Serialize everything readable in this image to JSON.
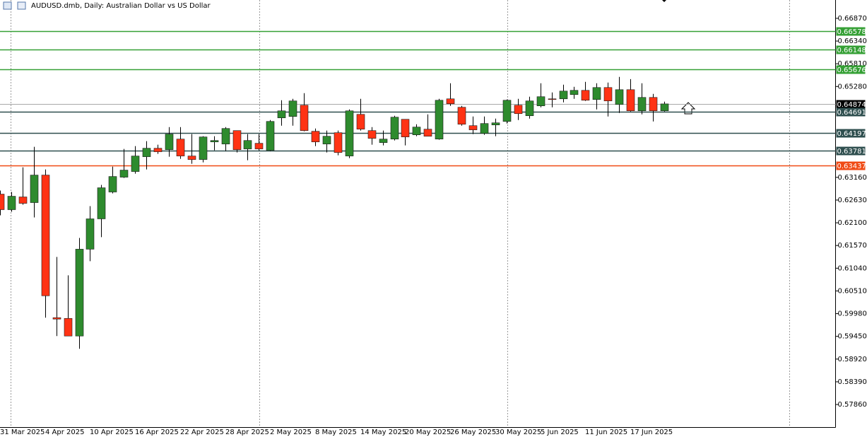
{
  "chart_data": {
    "type": "candlestick",
    "title": "AUDUSD.dmb, Daily:  Australian Dollar vs US Dollar",
    "categories": [
      "31 Mar 2025",
      null,
      null,
      null,
      "4 Apr 2025",
      null,
      null,
      null,
      "10 Apr 2025",
      null,
      null,
      null,
      "16 Apr 2025",
      null,
      null,
      null,
      "22 Apr 2025",
      null,
      null,
      null,
      "28 Apr 2025",
      null,
      null,
      null,
      "2 May 2025",
      null,
      null,
      null,
      "8 May 2025",
      null,
      null,
      null,
      "14 May 2025",
      null,
      null,
      null,
      "20 May 2025",
      null,
      null,
      null,
      "26 May 2025",
      null,
      null,
      null,
      "30 May 2025",
      null,
      null,
      null,
      "5 Jun 2025",
      null,
      null,
      null,
      "11 Jun 2025",
      null,
      null,
      null,
      "17 Jun 2025",
      null,
      null,
      null
    ],
    "open": [
      0.62769,
      0.62406,
      0.62703,
      0.62571,
      0.63213,
      0.59886,
      0.59869,
      0.59458,
      0.61484,
      0.62192,
      0.62818,
      0.63164,
      0.63296,
      0.63642,
      0.63839,
      0.63806,
      0.64053,
      0.63658,
      0.63576,
      0.63987,
      0.63938,
      0.64251,
      0.63823,
      0.63955,
      0.6379,
      0.64548,
      0.6458,
      0.64844,
      0.64235,
      0.63938,
      0.64202,
      0.63658,
      0.6463,
      0.64251,
      0.63971,
      0.64053,
      0.64515,
      0.64152,
      0.64284,
      0.64053,
      0.64992,
      0.64795,
      0.64366,
      0.64185,
      0.64383,
      0.64465,
      0.64844,
      0.64597,
      0.64828,
      0.64992,
      0.64992,
      0.65091,
      0.6519,
      0.64976,
      0.65256,
      0.6486,
      0.65206,
      0.64712,
      0.65025,
      0.64712
    ],
    "high": [
      0.62851,
      0.62818,
      0.63394,
      0.63872,
      0.63345,
      0.61303,
      0.60874,
      0.61747,
      0.62489,
      0.62983,
      0.63411,
      0.63823,
      0.63889,
      0.64004,
      0.63922,
      0.64333,
      0.64333,
      0.64169,
      0.64119,
      0.64119,
      0.64333,
      0.64251,
      0.64169,
      0.64169,
      0.64498,
      0.64959,
      0.64992,
      0.65124,
      0.643,
      0.64251,
      0.64251,
      0.64745,
      0.64992,
      0.64333,
      0.64251,
      0.64597,
      0.64515,
      0.64399,
      0.6463,
      0.64992,
      0.65355,
      0.64828,
      0.6458,
      0.6458,
      0.64531,
      0.64976,
      0.64992,
      0.65042,
      0.65355,
      0.65141,
      0.65322,
      0.65272,
      0.65388,
      0.65355,
      0.65371,
      0.65503,
      0.65453,
      0.65355,
      0.65108,
      0.64926
    ],
    "low": [
      0.62274,
      0.62357,
      0.62521,
      0.62225,
      0.59886,
      0.59458,
      0.59458,
      0.59161,
      0.61204,
      0.61764,
      0.62785,
      0.63147,
      0.63246,
      0.63345,
      0.63707,
      0.63642,
      0.63592,
      0.63477,
      0.6351,
      0.6379,
      0.63773,
      0.6374,
      0.63559,
      0.6379,
      0.63773,
      0.64366,
      0.64366,
      0.64235,
      0.63889,
      0.6374,
      0.63675,
      0.63609,
      0.64251,
      0.63922,
      0.63905,
      0.6402,
      0.63905,
      0.64119,
      0.64119,
      0.64037,
      0.64828,
      0.64366,
      0.64169,
      0.64152,
      0.64119,
      0.64416,
      0.64498,
      0.64531,
      0.64795,
      0.64795,
      0.6491,
      0.64992,
      0.64943,
      0.64745,
      0.6458,
      0.64663,
      0.64696,
      0.6463,
      0.64465,
      0.64696
    ],
    "close": [
      0.62406,
      0.62719,
      0.62554,
      0.63213,
      0.60397,
      0.59853,
      0.59458,
      0.61484,
      0.62192,
      0.62917,
      0.6318,
      0.63329,
      0.63658,
      0.63839,
      0.63757,
      0.64169,
      0.63658,
      0.63576,
      0.64103,
      0.6402,
      0.643,
      0.63806,
      0.6402,
      0.63823,
      0.64465,
      0.64712,
      0.64943,
      0.64251,
      0.63987,
      0.64119,
      0.6374,
      0.64712,
      0.64284,
      0.6407,
      0.64053,
      0.64564,
      0.64103,
      0.64333,
      0.64119,
      0.64959,
      0.64877,
      0.64399,
      0.64268,
      0.64416,
      0.64432,
      0.64959,
      0.64646,
      0.64943,
      0.65042,
      0.64976,
      0.65173,
      0.6519,
      0.64959,
      0.65256,
      0.64943,
      0.65206,
      0.64712,
      0.65025,
      0.64712,
      0.64874
    ],
    "up_color": "#2e8b2e",
    "down_color": "#ff3314",
    "ylim": [
      0.57333,
      0.67298
    ],
    "yticks": [
      {
        "value": 0.6687,
        "label": "0.66870"
      },
      {
        "value": 0.6634,
        "label": "0.66340"
      },
      {
        "value": 0.6581,
        "label": "0.65810"
      },
      {
        "value": 0.6528,
        "label": "0.65280"
      },
      {
        "value": 0.6316,
        "label": "0.63160"
      },
      {
        "value": 0.6263,
        "label": "0.62630"
      },
      {
        "value": 0.621,
        "label": "0.62100"
      },
      {
        "value": 0.6157,
        "label": "0.61570"
      },
      {
        "value": 0.6104,
        "label": "0.61040"
      },
      {
        "value": 0.6051,
        "label": "0.60510"
      },
      {
        "value": 0.5998,
        "label": "0.59980"
      },
      {
        "value": 0.5945,
        "label": "0.59450"
      },
      {
        "value": 0.5892,
        "label": "0.58920"
      },
      {
        "value": 0.5839,
        "label": "0.58390"
      },
      {
        "value": 0.5786,
        "label": "0.57860"
      }
    ],
    "levels": [
      {
        "value": 0.66578,
        "color": "#35a035"
      },
      {
        "value": 0.66148,
        "color": "#35a035"
      },
      {
        "value": 0.65676,
        "color": "#35a035"
      },
      {
        "value": 0.64874,
        "color": "#000000"
      },
      {
        "value": 0.64691,
        "color": "#2f4f4f"
      },
      {
        "value": 0.64197,
        "color": "#2f4f4f"
      },
      {
        "value": 0.63781,
        "color": "#2f4f4f"
      },
      {
        "value": 0.63437,
        "color": "#f04a14"
      }
    ]
  }
}
